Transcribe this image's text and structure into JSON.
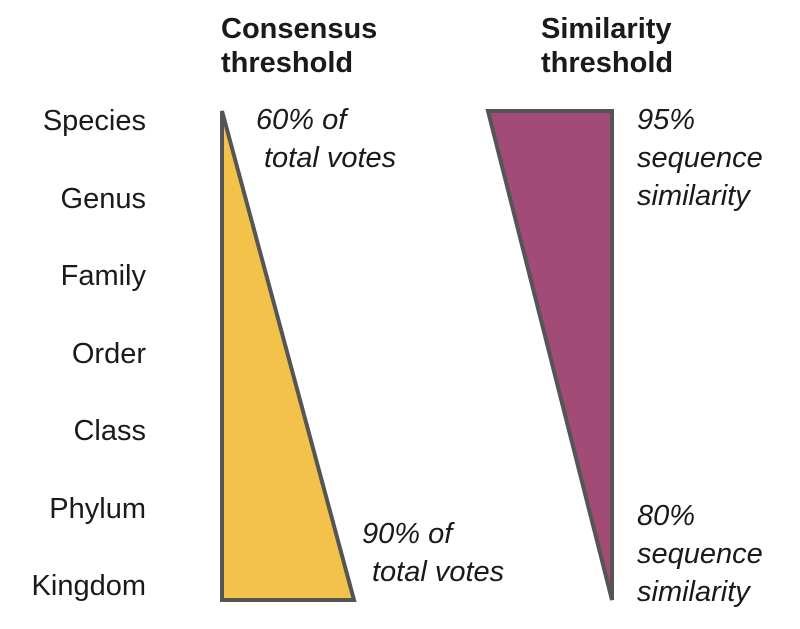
{
  "titles": {
    "consensus": [
      "Consensus",
      "threshold"
    ],
    "similarity": [
      "Similarity",
      "threshold"
    ]
  },
  "ranks": [
    "Species",
    "Genus",
    "Family",
    "Order",
    "Class",
    "Phylum",
    "Kingdom"
  ],
  "consensus_notes": {
    "top": [
      "60% of",
      "total votes"
    ],
    "bottom": [
      "90% of",
      "total votes"
    ]
  },
  "similarity_notes": {
    "top": [
      "95%",
      "sequence",
      "similarity"
    ],
    "bottom": [
      "80%",
      "sequence",
      "similarity"
    ]
  },
  "colors": {
    "consensus_fill": "#F2C24A",
    "similarity_fill": "#A24B77",
    "stroke": "#555555"
  }
}
